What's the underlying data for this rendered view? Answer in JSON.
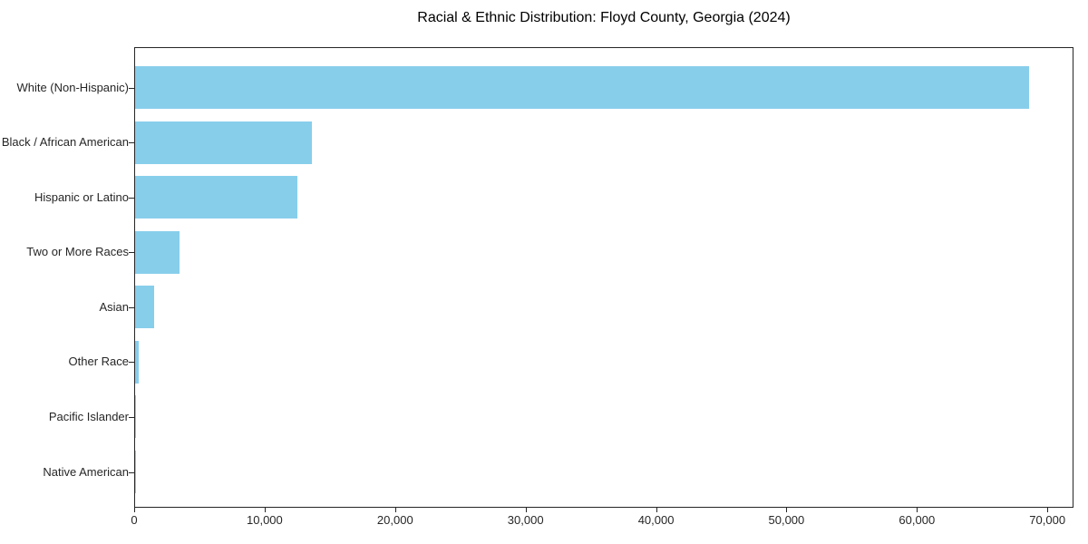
{
  "chart_data": {
    "type": "bar",
    "orientation": "horizontal",
    "title": "Racial & Ethnic Distribution: Floyd County, Georgia (2024)",
    "categories": [
      "White (Non-Hispanic)",
      "Black / African American",
      "Hispanic or Latino",
      "Two or More Races",
      "Asian",
      "Other Race",
      "Pacific Islander",
      "Native American"
    ],
    "values": [
      68500,
      13550,
      12470,
      3420,
      1480,
      300,
      100,
      40
    ],
    "xlabel": "",
    "ylabel": "",
    "xlim": [
      0,
      72000
    ],
    "x_ticks": [
      0,
      10000,
      20000,
      30000,
      40000,
      50000,
      60000,
      70000
    ],
    "x_tick_labels": [
      "0",
      "10,000",
      "20,000",
      "30,000",
      "40,000",
      "50,000",
      "60,000",
      "70,000"
    ],
    "bar_color": "#87CEEB",
    "grid": false,
    "legend": "none",
    "value_labels": false
  },
  "colors": {
    "background": "#ffffff",
    "bar": "#87CEEB",
    "spine": "#262626",
    "text": "#000000",
    "tick_text": "#262626"
  }
}
